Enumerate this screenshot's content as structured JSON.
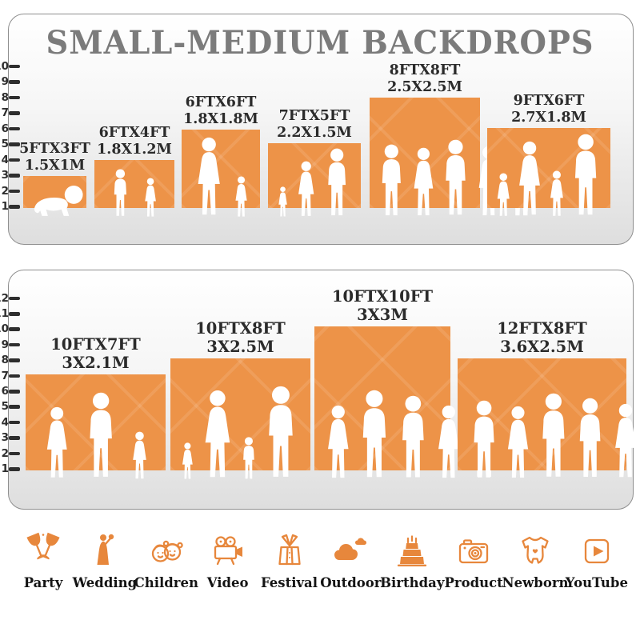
{
  "title": "SMALL-MEDIUM BACKDROPS",
  "colors": {
    "backdrop_orange": "#ED9348",
    "icon_orange": "#E7873C",
    "title_gray": "#7B7B7B",
    "label_dark": "#2B2B2B"
  },
  "panels": [
    {
      "id": "top",
      "ruler_ticks": [
        "1",
        "2",
        "3",
        "4",
        "5",
        "6",
        "7",
        "8",
        "9",
        "10"
      ],
      "backdrops": [
        {
          "size_ft": "5FTX3FT",
          "size_m": "1.5X1M",
          "figures": [
            {
              "type": "baby",
              "h": 0.42
            }
          ]
        },
        {
          "size_ft": "6FTX4FT",
          "size_m": "1.8X1.2M",
          "figures": [
            {
              "type": "boy",
              "h": 0.58
            },
            {
              "type": "girl",
              "h": 0.48
            }
          ]
        },
        {
          "size_ft": "6FTX6FT",
          "size_m": "1.8X1.8M",
          "figures": [
            {
              "type": "woman",
              "h": 0.96
            },
            {
              "type": "girl",
              "h": 0.5
            }
          ]
        },
        {
          "size_ft": "7FTX5FT",
          "size_m": "2.2X1.5M",
          "figures": [
            {
              "type": "girl",
              "h": 0.37
            },
            {
              "type": "woman",
              "h": 0.68
            },
            {
              "type": "man",
              "h": 0.83
            }
          ]
        },
        {
          "size_ft": "8FTX8FT",
          "size_m": "2.5X2.5M",
          "figures": [
            {
              "type": "man",
              "h": 0.88
            },
            {
              "type": "woman",
              "h": 0.84
            },
            {
              "type": "man",
              "h": 0.93
            },
            {
              "type": "woman",
              "h": 0.86
            },
            {
              "type": "man",
              "h": 0.9
            }
          ]
        },
        {
          "size_ft": "9FTX6FT",
          "size_m": "2.7X1.8M",
          "figures": [
            {
              "type": "girl",
              "h": 0.53
            },
            {
              "type": "woman",
              "h": 0.91
            },
            {
              "type": "girl",
              "h": 0.56
            },
            {
              "type": "man",
              "h": 1.0
            }
          ]
        }
      ]
    },
    {
      "id": "bottom",
      "ruler_ticks": [
        "1",
        "2",
        "3",
        "4",
        "5",
        "6",
        "7",
        "8",
        "9",
        "10",
        "11",
        "12"
      ],
      "backdrops": [
        {
          "size_ft": "10FTX7FT",
          "size_m": "3X2.1M",
          "figures": [
            {
              "type": "woman",
              "h": 0.78
            },
            {
              "type": "man",
              "h": 0.93
            },
            {
              "type": "girl",
              "h": 0.52
            }
          ]
        },
        {
          "size_ft": "10FTX8FT",
          "size_m": "3X2.5M",
          "figures": [
            {
              "type": "girl",
              "h": 0.4
            },
            {
              "type": "woman",
              "h": 0.96
            },
            {
              "type": "boy",
              "h": 0.46
            },
            {
              "type": "man",
              "h": 1.0
            }
          ]
        },
        {
          "size_ft": "10FTX10FT",
          "size_m": "3X3M",
          "figures": [
            {
              "type": "woman",
              "h": 0.8
            },
            {
              "type": "man",
              "h": 0.96
            },
            {
              "type": "man",
              "h": 0.9
            },
            {
              "type": "woman",
              "h": 0.8
            },
            {
              "type": "man",
              "h": 0.93
            }
          ]
        },
        {
          "size_ft": "12FTX8FT",
          "size_m": "3.6X2.5M",
          "figures": [
            {
              "type": "man",
              "h": 0.85
            },
            {
              "type": "woman",
              "h": 0.79
            },
            {
              "type": "man",
              "h": 0.92
            },
            {
              "type": "man",
              "h": 0.87
            },
            {
              "type": "woman",
              "h": 0.81
            },
            {
              "type": "man",
              "h": 0.9
            },
            {
              "type": "woman",
              "h": 0.77
            },
            {
              "type": "man",
              "h": 0.86
            }
          ]
        }
      ]
    }
  ],
  "categories": [
    {
      "label": "Party",
      "icon": "party-icon"
    },
    {
      "label": "Wedding",
      "icon": "wedding-icon"
    },
    {
      "label": "Children",
      "icon": "children-icon"
    },
    {
      "label": "Video",
      "icon": "video-icon"
    },
    {
      "label": "Festival",
      "icon": "festival-icon"
    },
    {
      "label": "Outdoor",
      "icon": "outdoor-icon"
    },
    {
      "label": "Birthday",
      "icon": "birthday-icon"
    },
    {
      "label": "Product",
      "icon": "product-icon"
    },
    {
      "label": "Newborn",
      "icon": "newborn-icon"
    },
    {
      "label": "YouTube",
      "icon": "youtube-icon"
    }
  ]
}
